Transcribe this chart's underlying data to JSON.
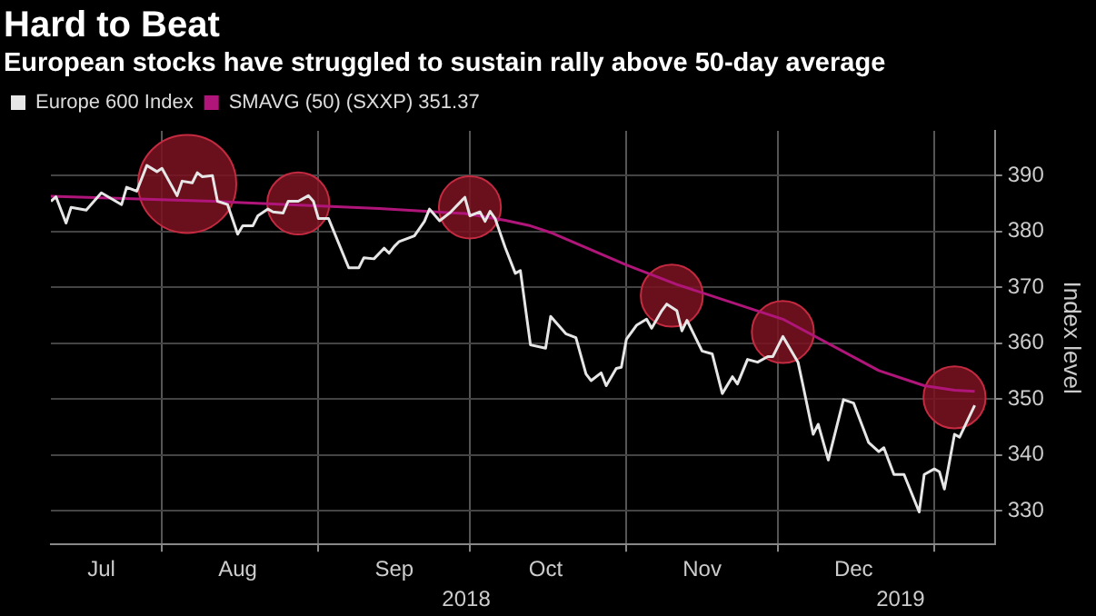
{
  "chart_data": {
    "type": "line",
    "title": "Hard to Beat",
    "subtitle": "European stocks have struggled to sustain rally above 50-day average",
    "ylabel": "Index level",
    "series": [
      {
        "name": "Europe 600 Index",
        "color": "#e6e6e6",
        "x": [
          "2018-07-10",
          "2018-07-11",
          "2018-07-13",
          "2018-07-14",
          "2018-07-17",
          "2018-07-20",
          "2018-07-24",
          "2018-07-25",
          "2018-07-27",
          "2018-07-29",
          "2018-07-31",
          "2018-08-01",
          "2018-08-04",
          "2018-08-05",
          "2018-08-07",
          "2018-08-08",
          "2018-08-09",
          "2018-08-11",
          "2018-08-12",
          "2018-08-14",
          "2018-08-16",
          "2018-08-17",
          "2018-08-19",
          "2018-08-20",
          "2018-08-22",
          "2018-08-23",
          "2018-08-25",
          "2018-08-26",
          "2018-08-28",
          "2018-08-30",
          "2018-08-31",
          "2018-09-01",
          "2018-09-03",
          "2018-09-07",
          "2018-09-09",
          "2018-09-10",
          "2018-09-12",
          "2018-09-14",
          "2018-09-15",
          "2018-09-16",
          "2018-09-17",
          "2018-09-20",
          "2018-09-22",
          "2018-09-23",
          "2018-09-25",
          "2018-09-27",
          "2018-09-30",
          "2018-10-01",
          "2018-10-03",
          "2018-10-04",
          "2018-10-05",
          "2018-10-06",
          "2018-10-08",
          "2018-10-10",
          "2018-10-11",
          "2018-10-13",
          "2018-10-16",
          "2018-10-17",
          "2018-10-20",
          "2018-10-22",
          "2018-10-24",
          "2018-10-25",
          "2018-10-27",
          "2018-10-28",
          "2018-10-30",
          "2018-10-31",
          "2018-11-01",
          "2018-11-03",
          "2018-11-05",
          "2018-11-06",
          "2018-11-08",
          "2018-11-09",
          "2018-11-11",
          "2018-11-12",
          "2018-11-13",
          "2018-11-16",
          "2018-11-18",
          "2018-11-20",
          "2018-11-22",
          "2018-11-23",
          "2018-11-25",
          "2018-11-27",
          "2018-11-29",
          "2018-11-30",
          "2018-12-02",
          "2018-12-05",
          "2018-12-06",
          "2018-12-08",
          "2018-12-09",
          "2018-12-11",
          "2018-12-14",
          "2018-12-16",
          "2018-12-19",
          "2018-12-21",
          "2018-12-22",
          "2018-12-24",
          "2018-12-26",
          "2018-12-29",
          "2018-12-30",
          "2019-01-01",
          "2019-01-02",
          "2019-01-03",
          "2019-01-05",
          "2019-01-06",
          "2019-01-09"
        ],
        "values": [
          385.4,
          386.2,
          381.5,
          384.3,
          383.8,
          386.9,
          384.8,
          387.9,
          387.2,
          391.8,
          390.7,
          391.3,
          386.4,
          389,
          388.7,
          390.5,
          389.8,
          390,
          385.4,
          384.8,
          379.5,
          381,
          381,
          382.8,
          384,
          383.5,
          383.3,
          385.4,
          385.4,
          386.4,
          385.4,
          382.3,
          382.3,
          373.5,
          373.5,
          375.3,
          375.1,
          377,
          376.1,
          377.3,
          378.2,
          379.2,
          381.8,
          384,
          381.9,
          383.3,
          386.1,
          382.8,
          383.5,
          381.8,
          383.6,
          382.3,
          377.1,
          372.5,
          373,
          359.7,
          359.1,
          364.8,
          361.7,
          361,
          354.5,
          353.3,
          354.7,
          352.4,
          355.5,
          355.7,
          360.7,
          363.2,
          364.3,
          362.7,
          365.8,
          367,
          365.8,
          362.2,
          364.1,
          358.6,
          358.1,
          351,
          354,
          352.7,
          357.1,
          356.6,
          357.6,
          357.6,
          361.2,
          356.6,
          352.4,
          343.7,
          345.5,
          339.1,
          349.9,
          349.3,
          342.2,
          340.6,
          341.3,
          336.5,
          336.5,
          329.8,
          336.5,
          337.5,
          337,
          333.9,
          343.7,
          343.2,
          348.9
        ]
      },
      {
        "name": "SMAVG (50) (SXXP) 351.37",
        "color": "#b0157a",
        "x": [
          "2018-07-10",
          "2018-08-11",
          "2018-09-13",
          "2018-09-30",
          "2018-10-08",
          "2018-10-13",
          "2018-10-17",
          "2018-11-01",
          "2018-11-11",
          "2018-12-02",
          "2018-12-21",
          "2018-12-30",
          "2019-01-05",
          "2019-01-09"
        ],
        "values": [
          386.3,
          385.4,
          384.1,
          383.2,
          382,
          381,
          379.8,
          374,
          370.5,
          364.3,
          355.1,
          352.4,
          351.6,
          351.4
        ]
      },
      {
        "type": "bubble",
        "color": "#7a1222",
        "x": [
          "2018-08-06",
          "2018-08-28",
          "2018-10-01",
          "2018-11-10",
          "2018-12-02",
          "2019-01-05"
        ],
        "values": [
          388.5,
          385,
          384.3,
          368.5,
          362,
          350.3
        ],
        "sizes": [
          1,
          0.4,
          0.4,
          0.4,
          0.4,
          0.4
        ]
      }
    ],
    "xlim": [
      "2018-07-10",
      "2019-01-13"
    ],
    "xticks": [
      {
        "value": "2018-07-20",
        "label": "Jul"
      },
      {
        "value": "2018-08-01",
        "label": null
      },
      {
        "value": "2018-08-16",
        "label": "Aug"
      },
      {
        "value": "2018-09-01",
        "label": null
      },
      {
        "value": "2018-09-16",
        "label": "Sep"
      },
      {
        "value": "2018-10-01",
        "label": null
      },
      {
        "value": "2018-10-16",
        "label": "Oct"
      },
      {
        "value": "2018-11-01",
        "label": null
      },
      {
        "value": "2018-11-16",
        "label": "Nov"
      },
      {
        "value": "2018-12-01",
        "label": null
      },
      {
        "value": "2018-12-16",
        "label": "Dec"
      },
      {
        "value": "2019-01-01",
        "label": null
      }
    ],
    "ylim": [
      324,
      398
    ],
    "yticks": [
      330,
      340,
      350,
      360,
      370,
      380,
      390
    ],
    "annotations": [
      "2018",
      "2019"
    ],
    "grid": true,
    "legend": "top left"
  }
}
